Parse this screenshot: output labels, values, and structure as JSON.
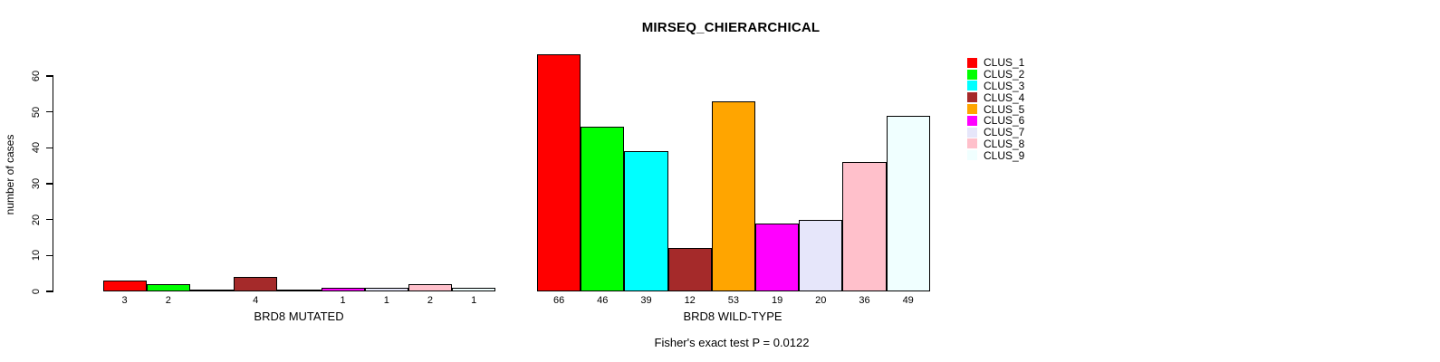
{
  "chart_data": {
    "type": "bar",
    "title": "MIRSEQ_CHIERARCHICAL",
    "ylabel": "number of cases",
    "xlabel": "",
    "ylim": [
      0,
      66
    ],
    "y_ticks": [
      0,
      10,
      20,
      30,
      40,
      50,
      60
    ],
    "grid": false,
    "legend_position": "top-right",
    "categories": [
      "CLUS_1",
      "CLUS_2",
      "CLUS_3",
      "CLUS_4",
      "CLUS_5",
      "CLUS_6",
      "CLUS_7",
      "CLUS_8",
      "CLUS_9"
    ],
    "cluster_colors": [
      "#FF0000",
      "#00FF00",
      "#00FFFF",
      "#A52A2A",
      "#FFA500",
      "#FF00FF",
      "#E6E6FA",
      "#FFC0CB",
      "#F0FFFF"
    ],
    "groups": [
      {
        "label": "BRD8 MUTATED",
        "values": [
          3,
          2,
          0,
          4,
          0,
          1,
          1,
          2,
          1
        ]
      },
      {
        "label": "BRD8 WILD-TYPE",
        "values": [
          66,
          46,
          39,
          12,
          53,
          19,
          20,
          36,
          49
        ]
      }
    ],
    "annotation": "Fisher's exact test P = 0.0122"
  }
}
